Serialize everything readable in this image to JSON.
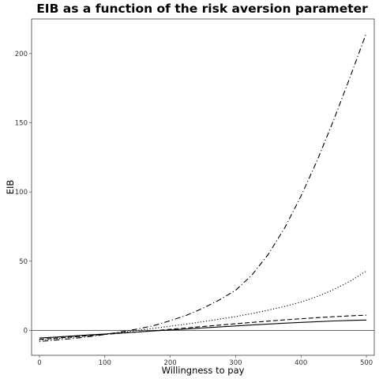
{
  "chart_data": {
    "type": "line",
    "title": "EIB as a function of the risk aversion parameter",
    "xlabel": "Willingness to pay",
    "ylabel": "EIB",
    "xlim": [
      -12,
      512
    ],
    "ylim": [
      -18,
      225
    ],
    "xticks": [
      0,
      100,
      200,
      300,
      400,
      500
    ],
    "yticks": [
      0,
      50,
      100,
      150,
      200
    ],
    "grid": false,
    "legend": "none",
    "reference_line_y": 0,
    "x": [
      0,
      25,
      50,
      75,
      100,
      125,
      150,
      175,
      200,
      225,
      250,
      275,
      300,
      325,
      350,
      375,
      400,
      425,
      450,
      475,
      500
    ],
    "series": [
      {
        "style": "solid",
        "values": [
          -5.5,
          -4.8,
          -4.1,
          -3.3,
          -2.6,
          -1.9,
          -1.2,
          -0.4,
          0.3,
          1.0,
          1.8,
          2.5,
          3.2,
          3.9,
          4.6,
          5.2,
          5.8,
          6.3,
          6.8,
          7.2,
          7.5
        ]
      },
      {
        "style": "dashed",
        "values": [
          -6.5,
          -5.6,
          -4.7,
          -3.8,
          -2.9,
          -2.0,
          -1.1,
          -0.2,
          0.8,
          1.8,
          2.8,
          3.8,
          4.8,
          5.8,
          6.7,
          7.6,
          8.4,
          9.2,
          9.9,
          10.5,
          11.0
        ]
      },
      {
        "style": "dotted",
        "values": [
          -7.0,
          -6.0,
          -5.0,
          -3.9,
          -2.7,
          -1.4,
          0.0,
          1.5,
          3.0,
          4.6,
          6.3,
          8.1,
          10.0,
          12.2,
          14.6,
          17.3,
          20.5,
          24.5,
          29.5,
          35.5,
          43.0
        ]
      },
      {
        "style": "dotdash",
        "values": [
          -8.0,
          -7.0,
          -5.9,
          -4.6,
          -3.0,
          -1.0,
          1.0,
          3.5,
          7.0,
          11.0,
          16.0,
          22.0,
          29.0,
          40.0,
          55.0,
          74.0,
          97.0,
          123.0,
          152.0,
          183.0,
          215.0
        ]
      }
    ]
  }
}
